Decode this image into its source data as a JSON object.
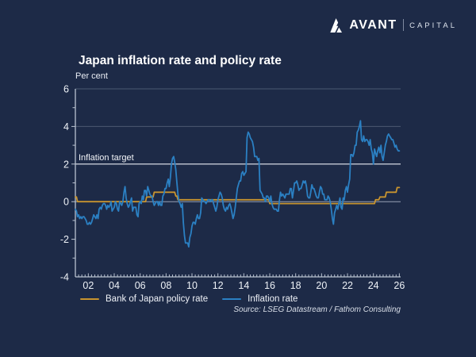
{
  "logo": {
    "brand": "AVANT",
    "suffix": "CAPITAL"
  },
  "header": {
    "title": "Japan inflation rate and policy rate",
    "units": "Per cent"
  },
  "chart_data": {
    "type": "line",
    "title": "Japan inflation rate and policy rate",
    "ylabel": "Per cent",
    "xlabel": "",
    "ylim": [
      -4,
      6
    ],
    "xlim": [
      2001,
      2026.1
    ],
    "yticks": [
      6,
      4,
      2,
      0,
      -2,
      -4
    ],
    "xticks": [
      {
        "year": 2002,
        "label": "02"
      },
      {
        "year": 2004,
        "label": "04"
      },
      {
        "year": 2006,
        "label": "06"
      },
      {
        "year": 2008,
        "label": "08"
      },
      {
        "year": 2010,
        "label": "10"
      },
      {
        "year": 2012,
        "label": "12"
      },
      {
        "year": 2014,
        "label": "14"
      },
      {
        "year": 2016,
        "label": "16"
      },
      {
        "year": 2018,
        "label": "18"
      },
      {
        "year": 2020,
        "label": "20"
      },
      {
        "year": 2022,
        "label": "22"
      },
      {
        "year": 2024,
        "label": "24"
      },
      {
        "year": 2026,
        "label": "26"
      }
    ],
    "gridline_values": [
      6,
      4,
      0
    ],
    "grid": true,
    "legend_position": "bottom",
    "target": {
      "label": "Inflation target",
      "value": 2
    },
    "x_start": 2001.0,
    "x_interval": "monthly",
    "series": [
      {
        "name": "Bank of Japan policy rate",
        "color": "#c8942f",
        "values": [
          0.25,
          0.25,
          0,
          0,
          0,
          0,
          0,
          0,
          0,
          0,
          0,
          0,
          0,
          0,
          0,
          0,
          0,
          0,
          0,
          0,
          0,
          0,
          0,
          0,
          0,
          0,
          0,
          0,
          0,
          0,
          0,
          0,
          0,
          0,
          0,
          0,
          0,
          0,
          0,
          0,
          0,
          0,
          0,
          0,
          0,
          0,
          0,
          0,
          0,
          0,
          0,
          0,
          0,
          0,
          0,
          0,
          0,
          0,
          0,
          0,
          0,
          0,
          0,
          0,
          0,
          0,
          0.25,
          0.25,
          0.25,
          0.25,
          0.25,
          0.25,
          0.25,
          0.5,
          0.5,
          0.5,
          0.5,
          0.5,
          0.5,
          0.5,
          0.5,
          0.5,
          0.5,
          0.5,
          0.5,
          0.5,
          0.5,
          0.5,
          0.5,
          0.5,
          0.5,
          0.5,
          0.5,
          0.3,
          0.3,
          0.1,
          0.1,
          0.1,
          0.1,
          0.1,
          0.1,
          0.1,
          0.1,
          0.1,
          0.1,
          0.1,
          0.1,
          0.1,
          0.1,
          0.1,
          0.1,
          0.1,
          0.1,
          0.1,
          0.1,
          0.1,
          0.1,
          0.1,
          0.1,
          0.1,
          0.1,
          0.1,
          0.1,
          0.1,
          0.1,
          0.1,
          0.1,
          0.1,
          0.1,
          0.1,
          0.1,
          0.1,
          0.1,
          0.1,
          0.1,
          0.1,
          0.1,
          0.1,
          0.1,
          0.1,
          0.1,
          0.1,
          0.1,
          0.1,
          0.1,
          0.1,
          0.1,
          0.1,
          0.1,
          0.1,
          0.1,
          0.1,
          0.1,
          0.1,
          0.1,
          0.1,
          0.1,
          0.1,
          0.1,
          0.1,
          0.1,
          0.1,
          0.1,
          0.1,
          0.1,
          0.1,
          0.1,
          0.1,
          0.1,
          0.1,
          0.1,
          0.1,
          0.1,
          0.1,
          0.1,
          0.1,
          0.1,
          0.1,
          0.1,
          0.1,
          -0.1,
          -0.1,
          -0.1,
          -0.1,
          -0.1,
          -0.1,
          -0.1,
          -0.1,
          -0.1,
          -0.1,
          -0.1,
          -0.1,
          -0.1,
          -0.1,
          -0.1,
          -0.1,
          -0.1,
          -0.1,
          -0.1,
          -0.1,
          -0.1,
          -0.1,
          -0.1,
          -0.1,
          -0.1,
          -0.1,
          -0.1,
          -0.1,
          -0.1,
          -0.1,
          -0.1,
          -0.1,
          -0.1,
          -0.1,
          -0.1,
          -0.1,
          -0.1,
          -0.1,
          -0.1,
          -0.1,
          -0.1,
          -0.1,
          -0.1,
          -0.1,
          -0.1,
          -0.1,
          -0.1,
          -0.1,
          -0.1,
          -0.1,
          -0.1,
          -0.1,
          -0.1,
          -0.1,
          -0.1,
          -0.1,
          -0.1,
          -0.1,
          -0.1,
          -0.1,
          -0.1,
          -0.1,
          -0.1,
          -0.1,
          -0.1,
          -0.1,
          -0.1,
          -0.1,
          -0.1,
          -0.1,
          -0.1,
          -0.1,
          -0.1,
          -0.1,
          -0.1,
          -0.1,
          -0.1,
          -0.1,
          -0.1,
          -0.1,
          -0.1,
          -0.1,
          -0.1,
          -0.1,
          -0.1,
          -0.1,
          -0.1,
          -0.1,
          -0.1,
          -0.1,
          -0.1,
          -0.1,
          -0.1,
          -0.1,
          -0.1,
          -0.1,
          -0.1,
          -0.1,
          0.1,
          0.1,
          0.1,
          0.1,
          0.25,
          0.25,
          0.25,
          0.25,
          0.25,
          0.25,
          0.5,
          0.5,
          0.5,
          0.5,
          0.5,
          0.5,
          0.5,
          0.5,
          0.5,
          0.5,
          0.75,
          0.75,
          0.75
        ]
      },
      {
        "name": "Inflation rate",
        "color": "#2b80c3",
        "values": [
          -0.4,
          -0.5,
          -0.8,
          -0.7,
          -0.9,
          -0.8,
          -0.9,
          -0.8,
          -0.8,
          -0.9,
          -1.0,
          -1.2,
          -1.2,
          -1.1,
          -1.2,
          -1.1,
          -0.9,
          -0.7,
          -0.8,
          -0.9,
          -0.7,
          -0.9,
          -0.4,
          -0.3,
          -0.4,
          -0.2,
          -0.1,
          -0.1,
          -0.2,
          -0.4,
          -0.2,
          -0.3,
          -0.2,
          0.0,
          -0.5,
          -0.4,
          -0.3,
          0.0,
          -0.1,
          -0.4,
          -0.5,
          0.0,
          -0.1,
          -0.2,
          0.0,
          0.5,
          0.8,
          0.2,
          -0.1,
          -0.3,
          -0.2,
          0.0,
          0.2,
          -0.5,
          -0.3,
          -0.3,
          -0.3,
          -0.7,
          -0.8,
          -0.1,
          0.0,
          -0.1,
          0.3,
          0.1,
          0.6,
          0.6,
          0.3,
          0.8,
          0.6,
          0.4,
          0.3,
          0.3,
          0.0,
          -0.2,
          -0.1,
          0.0,
          0.0,
          -0.2,
          0.0,
          -0.2,
          -0.2,
          0.3,
          0.4,
          0.7,
          0.7,
          1.0,
          1.2,
          0.8,
          1.3,
          2.0,
          2.3,
          2.4,
          2.1,
          1.7,
          1.0,
          0.4,
          0.0,
          -0.1,
          -0.3,
          -0.1,
          -1.1,
          -1.8,
          -2.2,
          -2.2,
          -2.2,
          -2.4,
          -1.9,
          -1.7,
          -1.3,
          -1.1,
          -1.1,
          -1.2,
          -0.9,
          -0.7,
          -0.9,
          -0.9,
          -0.6,
          0.2,
          0.1,
          0.0,
          0.0,
          -0.1,
          0.0,
          0.1,
          0.1,
          0.0,
          0.1,
          0.1,
          -0.1,
          -0.3,
          -0.5,
          -0.3,
          0.1,
          0.3,
          0.5,
          0.4,
          0.2,
          -0.2,
          -0.4,
          -0.5,
          -0.3,
          -0.4,
          -0.2,
          -0.1,
          -0.3,
          -0.6,
          -0.9,
          -0.7,
          -0.3,
          0.2,
          0.7,
          0.9,
          1.1,
          1.1,
          1.5,
          1.6,
          1.4,
          1.5,
          1.6,
          3.4,
          3.7,
          3.6,
          3.4,
          3.3,
          3.2,
          2.9,
          2.4,
          2.4,
          2.4,
          2.2,
          2.3,
          0.6,
          0.5,
          0.4,
          0.2,
          0.2,
          0.0,
          0.3,
          0.3,
          0.2,
          0.0,
          0.3,
          -0.1,
          -0.3,
          -0.4,
          -0.4,
          -0.4,
          -0.5,
          -0.5,
          0.1,
          0.5,
          0.3,
          0.4,
          0.3,
          0.2,
          0.4,
          0.4,
          0.4,
          0.4,
          0.7,
          0.7,
          0.2,
          0.6,
          1.0,
          1.0,
          1.1,
          0.9,
          0.6,
          0.7,
          0.7,
          0.9,
          1.1,
          1.0,
          1.1,
          0.8,
          0.3,
          0.2,
          0.2,
          0.5,
          0.9,
          0.7,
          0.7,
          0.5,
          0.3,
          0.2,
          0.2,
          0.5,
          0.8,
          0.7,
          0.4,
          0.4,
          0.1,
          0.1,
          0.1,
          0.3,
          0.2,
          0.0,
          -0.4,
          -0.9,
          -1.2,
          -0.6,
          -0.4,
          -0.2,
          -0.4,
          -0.1,
          0.2,
          -0.3,
          -0.4,
          0.2,
          0.1,
          0.6,
          0.8,
          0.5,
          0.9,
          1.2,
          2.5,
          2.5,
          2.4,
          2.6,
          3.0,
          3.0,
          3.7,
          3.8,
          4.0,
          4.3,
          3.3,
          3.2,
          3.5,
          3.2,
          3.3,
          3.3,
          3.2,
          3.0,
          3.3,
          2.8,
          2.6,
          2.0,
          2.8,
          2.6,
          2.4,
          2.7,
          2.9,
          2.6,
          3.0,
          2.4,
          2.2,
          2.6,
          3.0,
          3.2,
          3.5,
          3.6,
          3.5,
          3.4,
          3.3,
          3.3,
          3.1,
          2.9,
          3.0,
          2.8,
          2.7,
          2.7
        ]
      }
    ],
    "source": "Source: LSEG Datastream / Fathom Consulting"
  },
  "style": {
    "background": "#1d2a47",
    "gridline_color": "#4c5972",
    "zero_line_color": "#98a2b6",
    "target_line_color": "#e8ecf3",
    "axis_color": "#b9c2d0",
    "text_color": "#eef2f7"
  }
}
